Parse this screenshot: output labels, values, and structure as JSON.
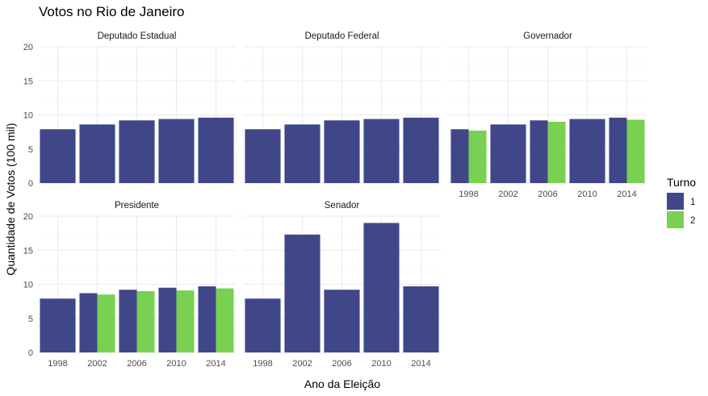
{
  "chart_data": {
    "type": "bar",
    "title": "Votos no Rio de Janeiro",
    "xlabel": "Ano da Eleição",
    "ylabel": "Quantidade de Votos (100 mil)",
    "ylim": [
      0,
      20
    ],
    "yticks": [
      0,
      5,
      10,
      15,
      20
    ],
    "categories": [
      "1998",
      "2002",
      "2006",
      "2010",
      "2014"
    ],
    "grid": true,
    "legend": {
      "title": "Turno",
      "placement": "right",
      "entries": [
        {
          "label": "1",
          "color": "#404788"
        },
        {
          "label": "2",
          "color": "#7AD151"
        }
      ]
    },
    "panels": [
      {
        "title": "Deputado Estadual",
        "series": [
          {
            "name": "1",
            "values": [
              7.9,
              8.6,
              9.2,
              9.4,
              9.6
            ]
          },
          {
            "name": "2",
            "values": [
              null,
              null,
              null,
              null,
              null
            ]
          }
        ]
      },
      {
        "title": "Deputado Federal",
        "series": [
          {
            "name": "1",
            "values": [
              7.9,
              8.6,
              9.2,
              9.4,
              9.6
            ]
          },
          {
            "name": "2",
            "values": [
              null,
              null,
              null,
              null,
              null
            ]
          }
        ]
      },
      {
        "title": "Governador",
        "series": [
          {
            "name": "1",
            "values": [
              7.9,
              8.6,
              9.2,
              9.4,
              9.6
            ]
          },
          {
            "name": "2",
            "values": [
              7.7,
              null,
              9.0,
              null,
              9.3
            ]
          }
        ]
      },
      {
        "title": "Presidente",
        "series": [
          {
            "name": "1",
            "values": [
              7.9,
              8.7,
              9.2,
              9.5,
              9.7
            ]
          },
          {
            "name": "2",
            "values": [
              null,
              8.5,
              9.0,
              9.1,
              9.4
            ]
          }
        ]
      },
      {
        "title": "Senador",
        "series": [
          {
            "name": "1",
            "values": [
              7.9,
              17.3,
              9.2,
              19.0,
              9.7
            ]
          },
          {
            "name": "2",
            "values": [
              null,
              null,
              null,
              null,
              null
            ]
          }
        ]
      }
    ]
  }
}
